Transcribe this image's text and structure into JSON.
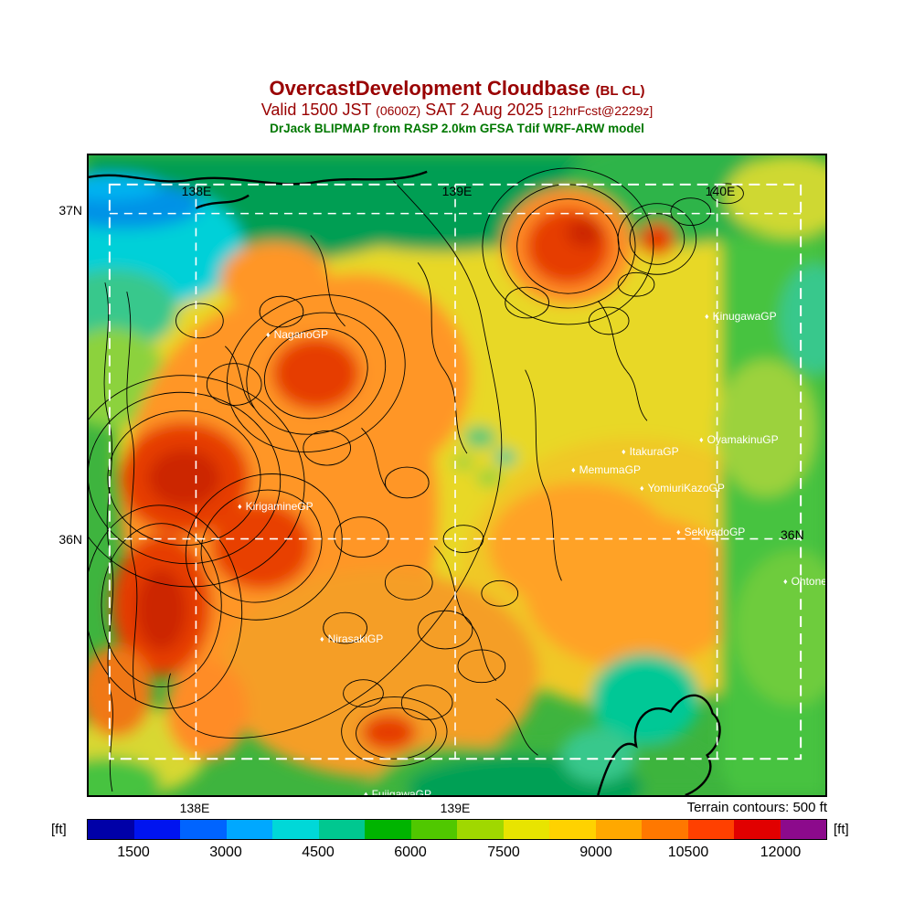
{
  "theme": {
    "maroon": "#990000",
    "green": "#007800",
    "site-label": "#ffffff",
    "axis-label": "#000000"
  },
  "header": {
    "title": "OvercastDevelopment Cloudbase",
    "title_suffix": "(BL CL)",
    "valid_prefix": "Valid 1500 JST",
    "valid_zulu": "(0600Z)",
    "valid_date": "SAT 2 Aug 2025",
    "forecast_tag": "[12hrFcst@2229z]",
    "model_line": "DrJack BLIPMAP from RASP 2.0km GFSA Tdif WRF-ARW model"
  },
  "map": {
    "grid_labels": {
      "top": [
        "138E",
        "139E",
        "140E"
      ],
      "left": [
        "37N",
        "36N"
      ],
      "right": [
        "36N"
      ],
      "bottom": [
        "138E",
        "139E"
      ]
    },
    "marker_glyph": "♦",
    "sites": [
      {
        "name": "NaganoGP"
      },
      {
        "name": "KinugawaGP"
      },
      {
        "name": "OyamakinuGP"
      },
      {
        "name": "ItakuraGP"
      },
      {
        "name": "MemumaGP"
      },
      {
        "name": "YomiuriKazoGP"
      },
      {
        "name": "SekiyadoGP"
      },
      {
        "name": "OhtoneGP"
      },
      {
        "name": "KirigamineGP"
      },
      {
        "name": "NirasakiGP"
      },
      {
        "name": "FujigawaGP"
      }
    ]
  },
  "footer": {
    "terrain_note": "Terrain contours: 500 ft",
    "unit_left": "[ft]",
    "unit_right": "[ft]"
  },
  "colorbar": {
    "ticks": [
      "1500",
      "3000",
      "4500",
      "6000",
      "7500",
      "9000",
      "10500",
      "12000"
    ],
    "colors": [
      "#0000a8",
      "#0014f0",
      "#0064ff",
      "#00a8ff",
      "#00d8d8",
      "#00c890",
      "#00b400",
      "#50c800",
      "#a0d800",
      "#e8e400",
      "#ffd200",
      "#ffa800",
      "#ff7800",
      "#ff4000",
      "#e10000",
      "#8c0a8c"
    ]
  }
}
